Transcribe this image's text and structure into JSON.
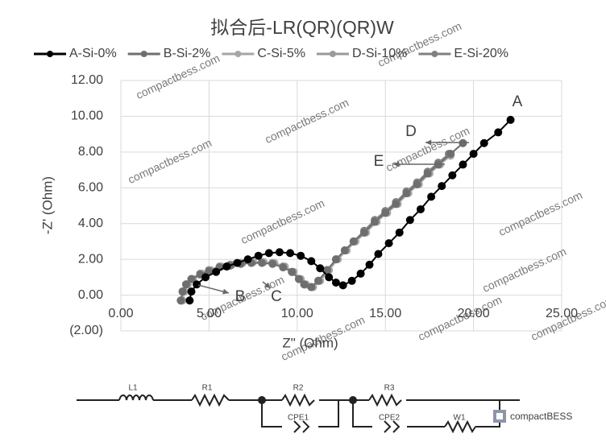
{
  "chart_data": {
    "type": "scatter",
    "title": "拟合后-LR(QR)(QR)W",
    "x_label": "Z\" (Ohm)",
    "y_label": "-Z' (Ohm)",
    "xlim": [
      0,
      25
    ],
    "xticks": [
      {
        "value": 0,
        "label": "0.00"
      },
      {
        "value": 5,
        "label": "5.00"
      },
      {
        "value": 10,
        "label": "10.00"
      },
      {
        "value": 15,
        "label": "15.00"
      },
      {
        "value": 20,
        "label": "20.00"
      },
      {
        "value": 25,
        "label": "25.00"
      }
    ],
    "ylim": [
      -2,
      12
    ],
    "yticks": [
      {
        "value": -2,
        "label": "(2.00)"
      },
      {
        "value": 0,
        "label": "0.00"
      },
      {
        "value": 2,
        "label": "2.00"
      },
      {
        "value": 4,
        "label": "4.00"
      },
      {
        "value": 6,
        "label": "6.00"
      },
      {
        "value": 8,
        "label": "8.00"
      },
      {
        "value": 10,
        "label": "10.00"
      },
      {
        "value": 12,
        "label": "12.00"
      }
    ],
    "grid": true,
    "series": [
      {
        "name": "A-Si-0%",
        "color": "#000000",
        "x": [
          3.9,
          4.0,
          4.3,
          4.8,
          5.4,
          6.0,
          6.6,
          7.2,
          7.8,
          8.4,
          9.0,
          9.6,
          10.2,
          10.8,
          11.3,
          11.8,
          12.2,
          12.6,
          13.1,
          13.6,
          14.1,
          14.6,
          15.2,
          15.8,
          16.4,
          17.0,
          17.6,
          18.2,
          18.8,
          19.4,
          20.0,
          20.6,
          21.4,
          22.1
        ],
        "values": [
          -0.3,
          0.2,
          0.6,
          1.0,
          1.3,
          1.6,
          1.8,
          2.0,
          2.2,
          2.35,
          2.4,
          2.35,
          2.2,
          1.9,
          1.5,
          1.0,
          0.7,
          0.55,
          0.8,
          1.2,
          1.7,
          2.3,
          2.9,
          3.5,
          4.2,
          4.8,
          5.5,
          6.1,
          6.7,
          7.3,
          7.9,
          8.5,
          9.1,
          9.8
        ]
      },
      {
        "name": "B-Si-2%",
        "color": "#6e6e6e",
        "x": [
          3.4,
          3.5,
          3.7,
          4.0,
          4.5,
          5.0,
          5.6,
          6.2,
          6.8,
          7.4,
          8.0,
          8.6,
          9.2,
          9.7,
          10.1,
          10.4,
          10.8,
          11.2,
          11.7,
          12.2,
          12.7,
          13.2,
          13.8,
          14.4,
          15.0,
          15.6,
          16.2,
          16.8,
          17.4,
          18.0,
          18.7,
          19.4
        ],
        "values": [
          -0.3,
          0.2,
          0.6,
          0.9,
          1.15,
          1.35,
          1.55,
          1.65,
          1.75,
          1.8,
          1.8,
          1.75,
          1.55,
          1.3,
          0.9,
          0.6,
          0.45,
          0.8,
          1.4,
          2.0,
          2.5,
          3.0,
          3.5,
          4.1,
          4.6,
          5.1,
          5.7,
          6.2,
          6.8,
          7.3,
          7.9,
          8.5
        ]
      },
      {
        "name": "C-Si-5%",
        "color": "#a6a6a6",
        "x": [
          3.5,
          3.6,
          3.8,
          4.1,
          4.6,
          5.1,
          5.7,
          6.3,
          6.9,
          7.5,
          8.1,
          8.7,
          9.3,
          9.8,
          10.2,
          10.5,
          10.9,
          11.3,
          11.8,
          12.3,
          12.8,
          13.3,
          13.9,
          14.5,
          15.1,
          15.7,
          16.3,
          16.9,
          17.5,
          18.1,
          18.7
        ],
        "values": [
          -0.3,
          0.2,
          0.6,
          0.9,
          1.2,
          1.4,
          1.6,
          1.7,
          1.8,
          1.85,
          1.85,
          1.8,
          1.6,
          1.3,
          0.9,
          0.6,
          0.45,
          0.8,
          1.4,
          2.0,
          2.5,
          3.0,
          3.5,
          4.1,
          4.6,
          5.1,
          5.7,
          6.2,
          6.8,
          7.3,
          7.8
        ]
      },
      {
        "name": "D-Si-10%",
        "color": "#9a9a9a",
        "x": [
          3.4,
          3.5,
          3.7,
          4.0,
          4.5,
          5.0,
          5.6,
          6.2,
          6.8,
          7.4,
          8.0,
          8.6,
          9.2,
          9.7,
          10.1,
          10.4,
          10.8,
          11.2,
          11.7,
          12.2,
          12.7,
          13.2,
          13.8,
          14.4,
          15.0,
          15.6,
          16.2,
          16.8,
          17.4,
          18.0,
          18.7,
          19.4
        ],
        "values": [
          -0.3,
          0.2,
          0.6,
          0.9,
          1.2,
          1.4,
          1.6,
          1.7,
          1.8,
          1.85,
          1.85,
          1.8,
          1.6,
          1.3,
          0.9,
          0.6,
          0.45,
          0.8,
          1.4,
          2.0,
          2.5,
          3.0,
          3.5,
          4.1,
          4.6,
          5.1,
          5.7,
          6.2,
          6.8,
          7.3,
          7.9,
          8.5
        ]
      },
      {
        "name": "E-Si-20%",
        "color": "#808080",
        "x": [
          3.4,
          3.5,
          3.7,
          4.0,
          4.5,
          5.0,
          5.6,
          6.2,
          6.8,
          7.4,
          8.0,
          8.6,
          9.2,
          9.7,
          10.1,
          10.4,
          10.8,
          11.2,
          11.7,
          12.2,
          12.7,
          13.2,
          13.8,
          14.4,
          15.0,
          15.6,
          16.2,
          16.8,
          17.4,
          18.0,
          18.6
        ],
        "values": [
          -0.3,
          0.2,
          0.6,
          0.9,
          1.2,
          1.4,
          1.6,
          1.7,
          1.8,
          1.85,
          1.85,
          1.8,
          1.6,
          1.3,
          0.9,
          0.6,
          0.45,
          0.8,
          1.4,
          2.0,
          2.5,
          3.0,
          3.6,
          4.2,
          4.7,
          5.2,
          5.8,
          6.3,
          6.9,
          7.4,
          7.9
        ]
      }
    ],
    "annotations": [
      "A",
      "B",
      "C",
      "D",
      "E"
    ],
    "watermark": "compactbess.com",
    "circuit": [
      "L1",
      "R1",
      "R2",
      "CPE1",
      "R3",
      "CPE2",
      "W1"
    ],
    "logo": "compactBESS"
  }
}
